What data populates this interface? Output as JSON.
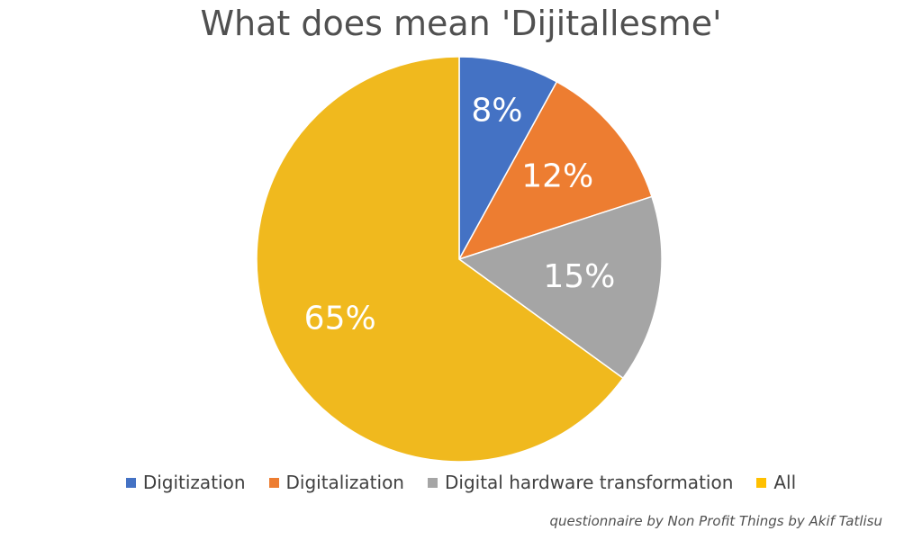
{
  "chart_data": {
    "type": "pie",
    "title": "What does mean 'Dijitallesme'",
    "categories": [
      "Digitization",
      "Digitalization",
      "Digital hardware transformation",
      "All"
    ],
    "values": [
      8,
      12,
      15,
      65
    ],
    "labels": [
      "8%",
      "12%",
      "15%",
      "65%"
    ],
    "colors": [
      "#4472C4",
      "#ED7D31",
      "#A5A5A5",
      "#FFC000"
    ],
    "legend_position": "bottom",
    "start_angle": "12 o'clock, clockwise"
  },
  "footnote": "questionnaire by Non Profit Things by Akif Tatlisu"
}
